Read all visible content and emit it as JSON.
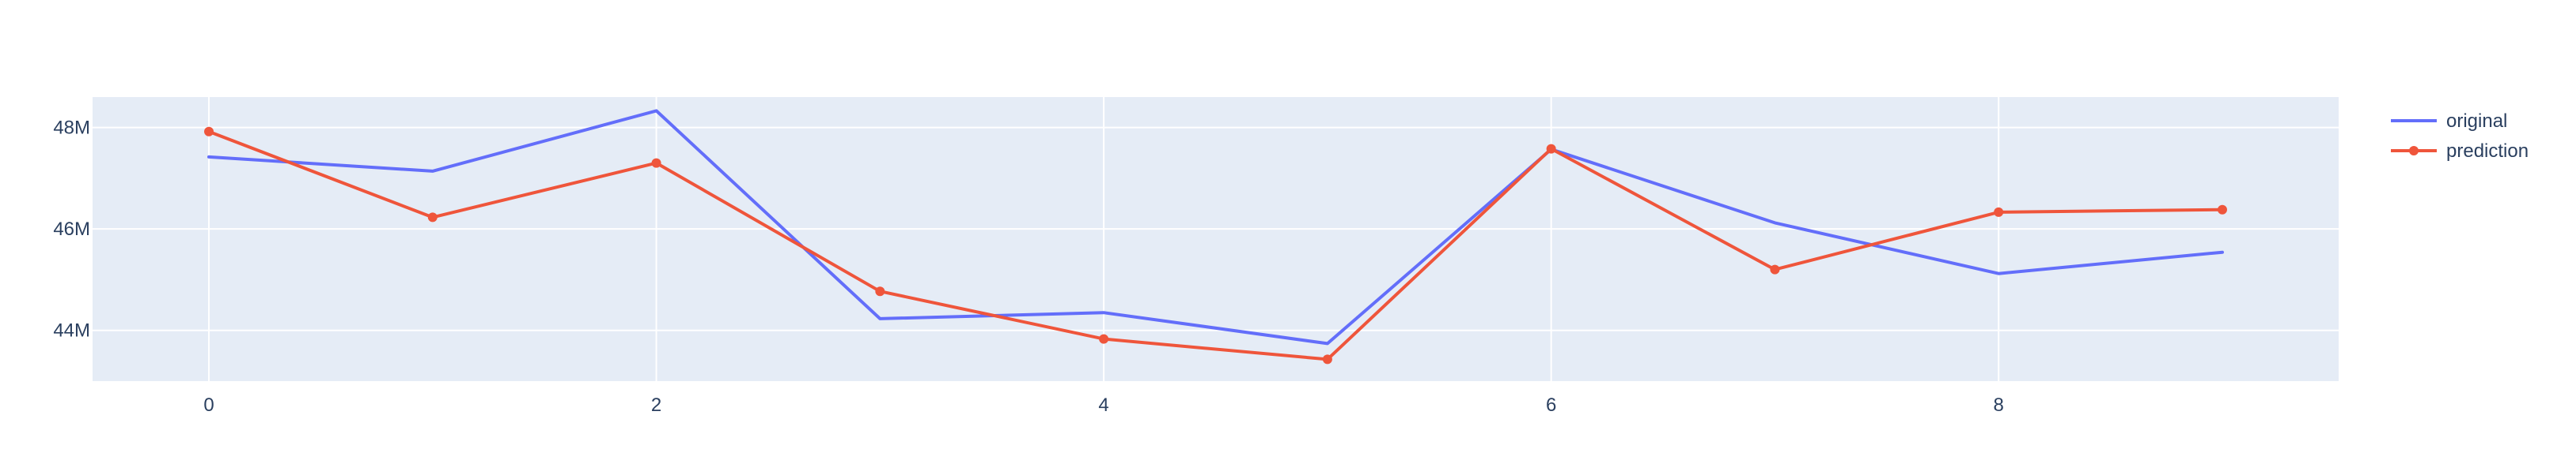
{
  "chart_data": {
    "type": "line",
    "title": "",
    "xlabel": "",
    "ylabel": "",
    "x": [
      0,
      1,
      2,
      3,
      4,
      5,
      6,
      7,
      8,
      9
    ],
    "xlim": [
      -0.52,
      9.52
    ],
    "ylim": [
      43000000,
      48600000
    ],
    "x_ticks": [
      0,
      2,
      4,
      6,
      8
    ],
    "x_tick_labels": [
      "0",
      "2",
      "4",
      "6",
      "8"
    ],
    "y_ticks": [
      44000000,
      46000000,
      48000000
    ],
    "y_tick_labels": [
      "44M",
      "46M",
      "48M"
    ],
    "grid": true,
    "legend_position": "top-right",
    "series": [
      {
        "name": "original",
        "mode": "lines",
        "color": "#636efa",
        "values": [
          47420000,
          47140000,
          48330000,
          44230000,
          44350000,
          43740000,
          47570000,
          46120000,
          45120000,
          45540000
        ]
      },
      {
        "name": "prediction",
        "mode": "lines+markers",
        "color": "#ef553b",
        "values": [
          47920000,
          46230000,
          47300000,
          44770000,
          43830000,
          43430000,
          47580000,
          45200000,
          46330000,
          46380000
        ]
      }
    ]
  },
  "colors": {
    "plot_background": "#e5ecf6",
    "grid": "#ffffff",
    "text": "#2a3f5f"
  }
}
